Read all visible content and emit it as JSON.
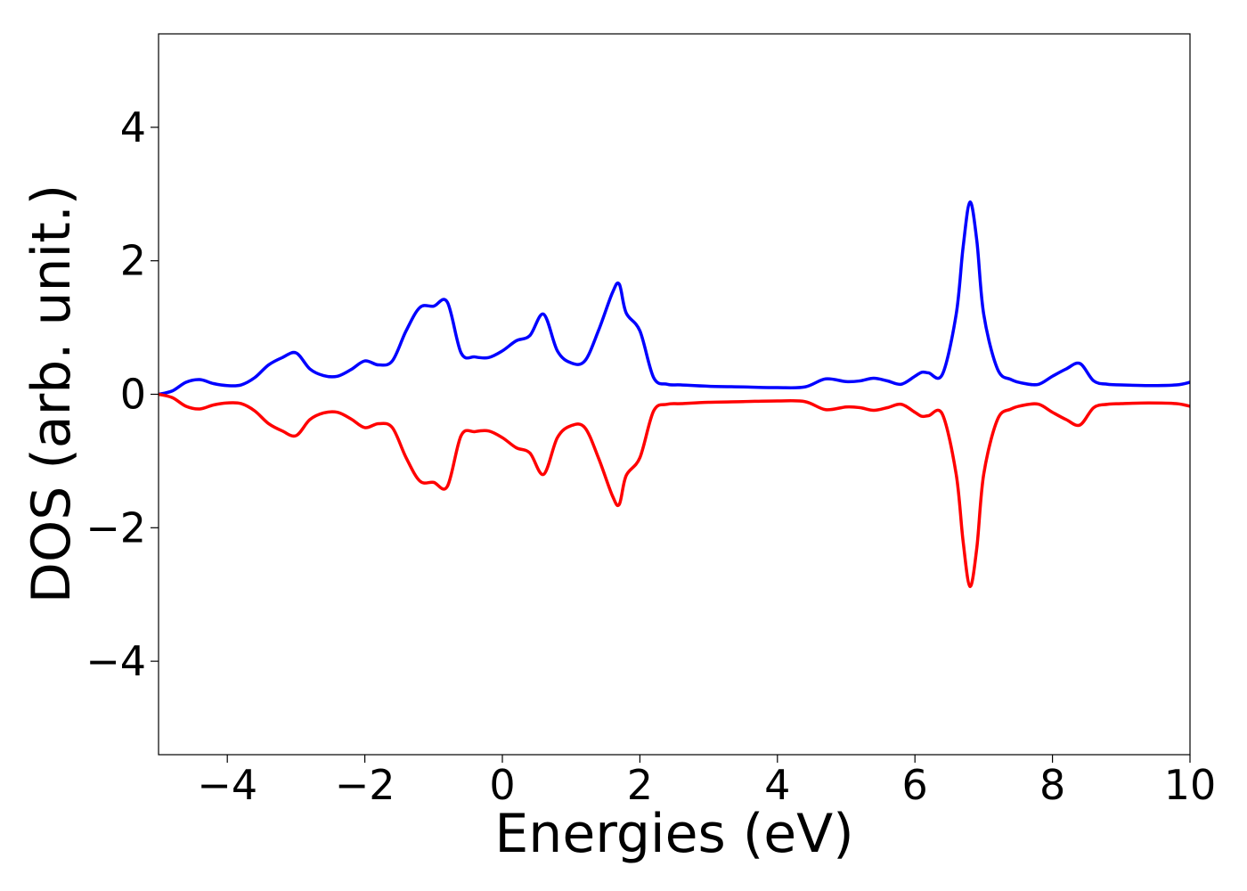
{
  "chart_data": {
    "type": "line",
    "xlabel": "Energies (eV)",
    "ylabel": "DOS (arb. unit.)",
    "xlim": [
      -5,
      10
    ],
    "ylim": [
      -5.4,
      5.4
    ],
    "grid": false,
    "x_ticks": [
      -4,
      -2,
      0,
      2,
      4,
      6,
      8,
      10
    ],
    "x_tick_labels": [
      "−4",
      "−2",
      "0",
      "2",
      "4",
      "6",
      "8",
      "10"
    ],
    "y_ticks": [
      -4,
      -2,
      0,
      2,
      4
    ],
    "y_tick_labels": [
      "−4",
      "−2",
      "0",
      "2",
      "4"
    ],
    "x": [
      -5.0,
      -4.8,
      -4.6,
      -4.4,
      -4.2,
      -4.0,
      -3.8,
      -3.6,
      -3.4,
      -3.2,
      -3.0,
      -2.8,
      -2.6,
      -2.4,
      -2.2,
      -2.0,
      -1.8,
      -1.6,
      -1.4,
      -1.2,
      -1.0,
      -0.8,
      -0.6,
      -0.4,
      -0.2,
      0.0,
      0.2,
      0.4,
      0.6,
      0.8,
      1.0,
      1.2,
      1.4,
      1.6,
      1.7,
      1.8,
      2.0,
      2.2,
      2.4,
      2.6,
      3.0,
      3.5,
      4.0,
      4.4,
      4.7,
      5.0,
      5.2,
      5.4,
      5.6,
      5.8,
      6.0,
      6.1,
      6.2,
      6.4,
      6.6,
      6.7,
      6.8,
      6.9,
      7.0,
      7.2,
      7.4,
      7.6,
      7.8,
      8.0,
      8.2,
      8.4,
      8.6,
      8.8,
      9.0,
      9.4,
      9.8,
      10.0
    ],
    "series": [
      {
        "color": "#0000ff",
        "values": [
          0.0,
          0.05,
          0.18,
          0.22,
          0.16,
          0.13,
          0.14,
          0.25,
          0.44,
          0.55,
          0.62,
          0.38,
          0.28,
          0.27,
          0.37,
          0.5,
          0.44,
          0.5,
          0.95,
          1.3,
          1.32,
          1.38,
          0.62,
          0.56,
          0.55,
          0.65,
          0.8,
          0.88,
          1.2,
          0.65,
          0.47,
          0.5,
          0.96,
          1.52,
          1.65,
          1.22,
          0.95,
          0.25,
          0.15,
          0.14,
          0.12,
          0.11,
          0.1,
          0.11,
          0.23,
          0.19,
          0.2,
          0.24,
          0.2,
          0.15,
          0.27,
          0.33,
          0.32,
          0.3,
          1.2,
          2.2,
          2.88,
          2.3,
          1.2,
          0.38,
          0.22,
          0.16,
          0.15,
          0.27,
          0.38,
          0.46,
          0.2,
          0.15,
          0.14,
          0.13,
          0.14,
          0.18
        ]
      },
      {
        "color": "#ff0000",
        "values": [
          0.0,
          -0.05,
          -0.18,
          -0.22,
          -0.16,
          -0.13,
          -0.14,
          -0.25,
          -0.44,
          -0.55,
          -0.62,
          -0.38,
          -0.28,
          -0.27,
          -0.37,
          -0.5,
          -0.44,
          -0.5,
          -0.95,
          -1.3,
          -1.32,
          -1.38,
          -0.62,
          -0.56,
          -0.55,
          -0.65,
          -0.8,
          -0.88,
          -1.2,
          -0.65,
          -0.47,
          -0.5,
          -0.96,
          -1.52,
          -1.65,
          -1.22,
          -0.95,
          -0.25,
          -0.15,
          -0.14,
          -0.12,
          -0.11,
          -0.1,
          -0.11,
          -0.23,
          -0.19,
          -0.2,
          -0.24,
          -0.2,
          -0.15,
          -0.27,
          -0.33,
          -0.32,
          -0.3,
          -1.2,
          -2.2,
          -2.88,
          -2.3,
          -1.2,
          -0.38,
          -0.22,
          -0.16,
          -0.15,
          -0.27,
          -0.38,
          -0.46,
          -0.2,
          -0.15,
          -0.14,
          -0.13,
          -0.14,
          -0.18
        ]
      }
    ]
  }
}
